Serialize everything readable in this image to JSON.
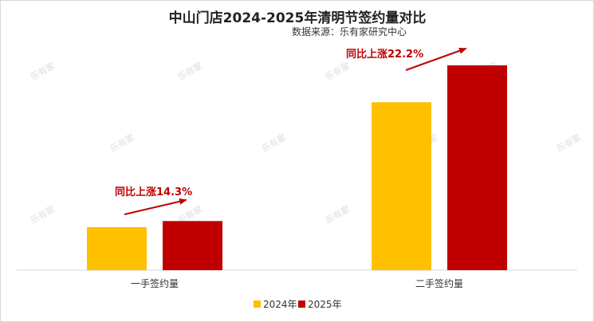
{
  "chart_data": {
    "type": "bar",
    "title": "中山门店2024-2025年清明节签约量对比",
    "subtitle": "数据来源：乐有家研究中心",
    "categories": [
      "一手签约量",
      "二手签约量"
    ],
    "series": [
      {
        "name": "2024年",
        "values": [
          21,
          82
        ],
        "color": "#ffc000"
      },
      {
        "name": "2025年",
        "values": [
          24,
          100
        ],
        "color": "#c00000"
      }
    ],
    "ylim": [
      0,
      100
    ],
    "grid": false,
    "legend_position": "bottom",
    "annotations": [
      "同比上涨14.3%",
      "同比上涨22.2%"
    ],
    "annotation_color": "#c00000"
  },
  "watermark": "乐有家"
}
